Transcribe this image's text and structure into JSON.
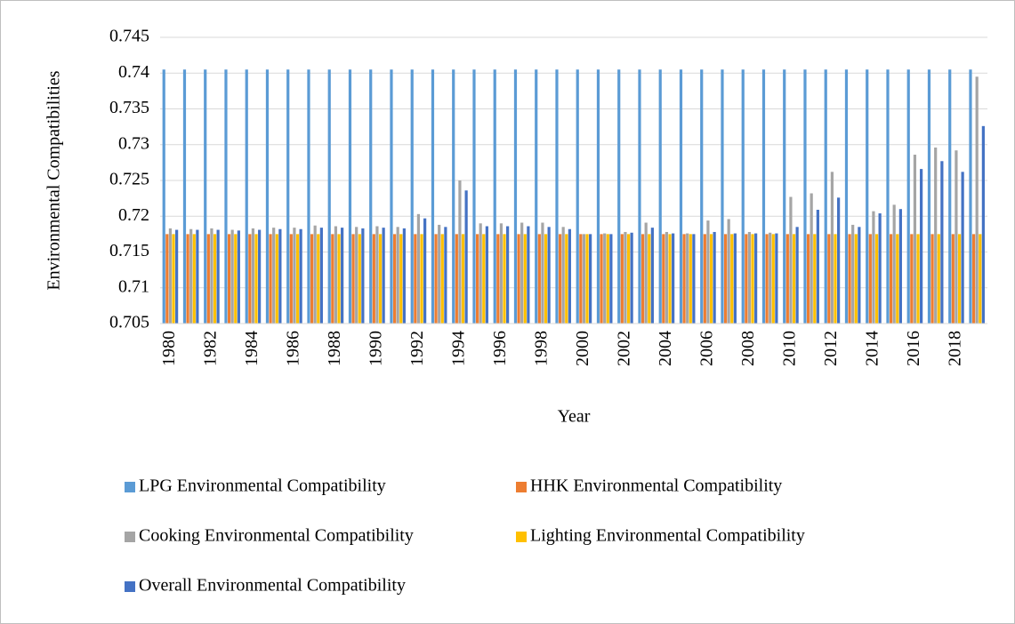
{
  "chart_data": {
    "type": "bar",
    "x_label": "Year",
    "y_label": "Environmental Compatibilities",
    "categories": [
      "1980",
      null,
      "1982",
      null,
      "1984",
      null,
      "1986",
      null,
      "1988",
      null,
      "1990",
      null,
      "1992",
      null,
      "1994",
      null,
      "1996",
      null,
      "1998",
      null,
      "2000",
      null,
      "2002",
      null,
      "2004",
      null,
      "2006",
      null,
      "2008",
      null,
      "2010",
      null,
      "2012",
      null,
      "2014",
      null,
      "2016",
      null,
      "2018",
      null
    ],
    "series": [
      {
        "name": "LPG Environmental Compatibility",
        "color": "#5b9bd5",
        "values": [
          0.7405,
          0.7405,
          0.7405,
          0.7405,
          0.7405,
          0.7405,
          0.7405,
          0.7405,
          0.7405,
          0.7405,
          0.7405,
          0.7405,
          0.7405,
          0.7405,
          0.7405,
          0.7405,
          0.7405,
          0.7405,
          0.7405,
          0.7405,
          0.7405,
          0.7405,
          0.7405,
          0.7405,
          0.7405,
          0.7405,
          0.7405,
          0.7405,
          0.7405,
          0.7405,
          0.7405,
          0.7405,
          0.7405,
          0.7405,
          0.7405,
          0.7405,
          0.7405,
          0.7405,
          0.7405,
          0.7405
        ]
      },
      {
        "name": "HHK Environmental Compatibility",
        "color": "#ed7d31",
        "values": [
          0.7175,
          0.7175,
          0.7175,
          0.7175,
          0.7175,
          0.7175,
          0.7175,
          0.7175,
          0.7175,
          0.7175,
          0.7175,
          0.7175,
          0.7175,
          0.7175,
          0.7175,
          0.7175,
          0.7175,
          0.7175,
          0.7175,
          0.7175,
          0.7175,
          0.7175,
          0.7175,
          0.7175,
          0.7175,
          0.7175,
          0.7175,
          0.7175,
          0.7175,
          0.7175,
          0.7175,
          0.7175,
          0.7175,
          0.7175,
          0.7175,
          0.7175,
          0.7175,
          0.7175,
          0.7175,
          0.7175
        ]
      },
      {
        "name": "Cooking Environmental Compatibility",
        "color": "#a5a5a5",
        "values": [
          0.7183,
          0.7182,
          0.7183,
          0.7181,
          0.7183,
          0.7184,
          0.7184,
          0.7187,
          0.7186,
          0.7185,
          0.7186,
          0.7185,
          0.7203,
          0.7188,
          0.725,
          0.719,
          0.719,
          0.7191,
          0.7191,
          0.7185,
          0.7175,
          0.7176,
          0.7178,
          0.7191,
          0.7178,
          0.7176,
          0.7194,
          0.7196,
          0.7178,
          0.7177,
          0.7227,
          0.7232,
          0.7262,
          0.7188,
          0.7207,
          0.7216,
          0.7286,
          0.7296,
          0.7292,
          0.7395
        ]
      },
      {
        "name": "Lighting Environmental Compatibility",
        "color": "#ffc000",
        "values": [
          0.7175,
          0.7175,
          0.7175,
          0.7175,
          0.7175,
          0.7175,
          0.7175,
          0.7175,
          0.7175,
          0.7175,
          0.7175,
          0.7175,
          0.7175,
          0.7175,
          0.7175,
          0.7175,
          0.7175,
          0.7175,
          0.7175,
          0.7175,
          0.7175,
          0.7175,
          0.7175,
          0.7175,
          0.7175,
          0.7175,
          0.7175,
          0.7175,
          0.7175,
          0.7175,
          0.7175,
          0.7175,
          0.7175,
          0.7175,
          0.7175,
          0.7175,
          0.7175,
          0.7175,
          0.7175,
          0.7175
        ]
      },
      {
        "name": "Overall Environmental Compatibility",
        "color": "#4472c4",
        "values": [
          0.7181,
          0.7181,
          0.7181,
          0.718,
          0.7181,
          0.7182,
          0.7182,
          0.7184,
          0.7184,
          0.7183,
          0.7184,
          0.7183,
          0.7197,
          0.7185,
          0.7236,
          0.7186,
          0.7186,
          0.7186,
          0.7185,
          0.7182,
          0.7175,
          0.7175,
          0.7177,
          0.7184,
          0.7176,
          0.7175,
          0.7178,
          0.7176,
          0.7176,
          0.7176,
          0.7185,
          0.7209,
          0.7226,
          0.7185,
          0.7204,
          0.721,
          0.7266,
          0.7277,
          0.7262,
          0.7326
        ]
      }
    ],
    "ylim": [
      0.705,
      0.745
    ],
    "yticks": [
      0.705,
      0.71,
      0.715,
      0.72,
      0.725,
      0.73,
      0.735,
      0.74,
      0.745
    ],
    "grid": true,
    "legend": "bottom"
  }
}
